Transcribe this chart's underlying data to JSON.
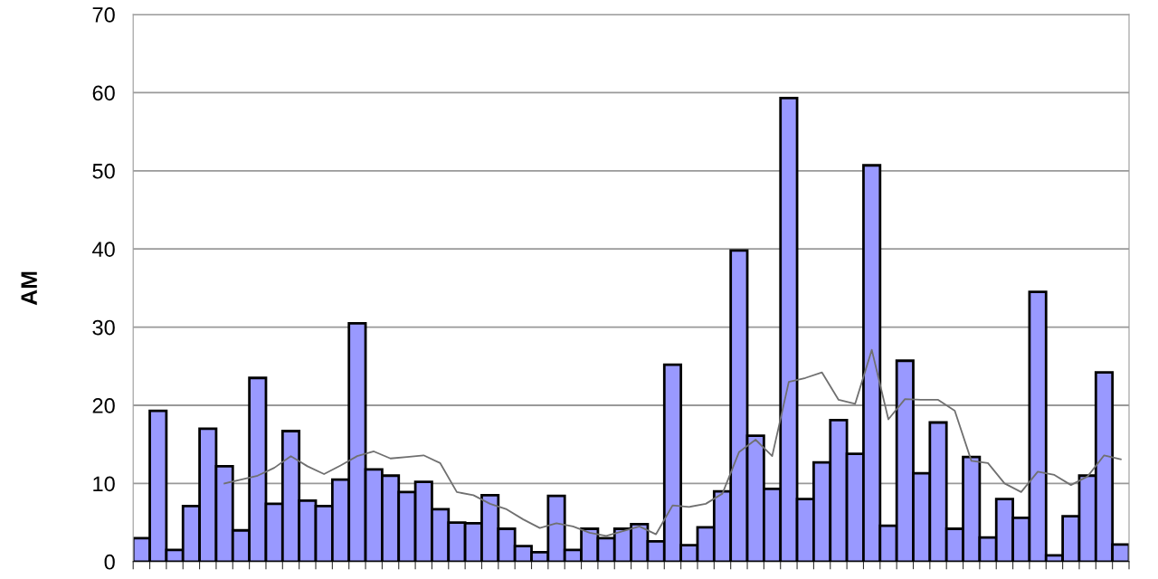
{
  "chart_data": {
    "type": "bar",
    "ylabel": "AM",
    "categories": [
      null,
      null,
      null,
      null,
      null,
      null,
      null,
      null,
      null,
      null,
      null,
      null,
      null,
      null,
      null,
      null,
      null,
      null,
      null,
      null,
      null,
      null,
      null,
      null,
      null,
      null,
      null,
      null,
      null,
      null,
      null,
      null,
      null,
      null,
      null,
      null,
      null,
      null,
      null,
      null,
      null,
      null,
      null,
      null,
      null,
      null,
      null,
      null,
      null,
      null,
      null,
      null,
      null,
      null,
      null,
      null,
      null,
      null,
      null,
      null
    ],
    "series": [
      {
        "color": "#9999ff",
        "values": [
          3,
          19.3,
          1.5,
          7.1,
          17,
          12.2,
          4,
          23.5,
          7.4,
          16.7,
          7.8,
          7.1,
          10.5,
          30.5,
          11.8,
          11,
          8.9,
          10.2,
          6.7,
          5,
          4.9,
          8.5,
          4.2,
          2,
          1.2,
          8.4,
          1.5,
          4.2,
          3,
          4.2,
          4.8,
          2.6,
          25.2,
          2.1,
          4.4,
          9,
          39.8,
          16.1,
          9.3,
          59.3,
          8,
          12.7,
          18.1,
          13.8,
          50.7,
          4.6,
          25.7,
          11.3,
          17.8,
          4.2,
          13.4,
          3.1,
          8,
          5.6,
          34.5,
          0.8,
          5.8,
          11,
          24.2,
          2.2
        ]
      },
      {
        "type": "line",
        "color": "#707070",
        "values": [
          null,
          null,
          null,
          null,
          null,
          10,
          10.5,
          11,
          12,
          13.5,
          12.2,
          11.2,
          12.3,
          13.5,
          14.1,
          13.2,
          13.4,
          13.6,
          12.6,
          8.9,
          8.5,
          7.4,
          6.7,
          5.4,
          4.3,
          4.9,
          4.5,
          3.7,
          3.3,
          3.9,
          4.5,
          3.5,
          7.2,
          7,
          7.4,
          8.7,
          14,
          15.6,
          13.5,
          23,
          23.5,
          24.2,
          20.7,
          20.2,
          27.1,
          18.2,
          20.8,
          20.7,
          20.7,
          19.3,
          12.9,
          12.6,
          10,
          8.9,
          11.5,
          11.1,
          9.8,
          10.9,
          13.6,
          13.1
        ]
      }
    ],
    "ylim": [
      0,
      70
    ],
    "yticks": [
      0,
      10,
      20,
      30,
      40,
      50,
      60,
      70
    ],
    "grid": "y",
    "legend": false
  }
}
